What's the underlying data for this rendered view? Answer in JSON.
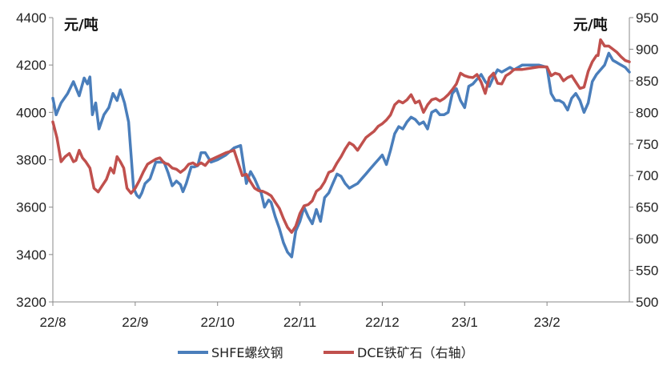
{
  "chart_data": {
    "type": "line",
    "title": "",
    "left_unit": "元/吨",
    "right_unit": "元/吨",
    "x_tick_labels": [
      "22/8",
      "22/9",
      "22/10",
      "22/11",
      "22/12",
      "23/1",
      "23/2"
    ],
    "y_left": {
      "min": 3200,
      "max": 4400,
      "ticks": [
        "3200",
        "3400",
        "3600",
        "3800",
        "4000",
        "4200",
        "4400"
      ]
    },
    "y_right": {
      "min": 500,
      "max": 950,
      "ticks": [
        "500",
        "550",
        "600",
        "650",
        "700",
        "750",
        "800",
        "850",
        "900",
        "950"
      ]
    },
    "grid": false,
    "legend_position": "bottom",
    "x_range": [
      0,
      7
    ],
    "series": [
      {
        "name": "SHFE螺纹钢",
        "axis": "left",
        "color": "#4a7ebb",
        "x": [
          0,
          0.04,
          0.1,
          0.18,
          0.25,
          0.32,
          0.38,
          0.42,
          0.45,
          0.48,
          0.52,
          0.56,
          0.62,
          0.68,
          0.73,
          0.78,
          0.82,
          0.87,
          0.92,
          0.98,
          1.02,
          1.05,
          1.08,
          1.12,
          1.18,
          1.25,
          1.3,
          1.35,
          1.4,
          1.45,
          1.5,
          1.55,
          1.58,
          1.62,
          1.68,
          1.72,
          1.76,
          1.8,
          1.85,
          1.92,
          2.0,
          2.1,
          2.2,
          2.28,
          2.35,
          2.4,
          2.45,
          2.5,
          2.53,
          2.57,
          2.62,
          2.65,
          2.7,
          2.75,
          2.8,
          2.85,
          2.9,
          2.95,
          3.0,
          3.05,
          3.1,
          3.15,
          3.2,
          3.25,
          3.3,
          3.35,
          3.4,
          3.45,
          3.5,
          3.55,
          3.6,
          3.65,
          3.7,
          3.75,
          3.8,
          3.85,
          3.9,
          3.95,
          4.0,
          4.05,
          4.1,
          4.15,
          4.2,
          4.25,
          4.3,
          4.35,
          4.4,
          4.45,
          4.5,
          4.55,
          4.6,
          4.65,
          4.7,
          4.75,
          4.8,
          4.85,
          4.9,
          4.95,
          5.0,
          5.05,
          5.1,
          5.15,
          5.2,
          5.25,
          5.3,
          5.35,
          5.4,
          5.45,
          5.5,
          5.55,
          5.6,
          5.7,
          5.8,
          5.9,
          6.0,
          6.05,
          6.1,
          6.15,
          6.2,
          6.25,
          6.3,
          6.35,
          6.4,
          6.45,
          6.5,
          6.55,
          6.6,
          6.65,
          6.7,
          6.75,
          6.8,
          6.85,
          6.9,
          6.95,
          7.0
        ],
        "y": [
          4060,
          3990,
          4040,
          4080,
          4130,
          4070,
          4145,
          4120,
          4150,
          3990,
          4040,
          3930,
          3990,
          4020,
          4080,
          4050,
          4095,
          4040,
          3960,
          3680,
          3650,
          3640,
          3660,
          3700,
          3720,
          3790,
          3790,
          3790,
          3745,
          3690,
          3710,
          3695,
          3665,
          3700,
          3770,
          3770,
          3775,
          3830,
          3830,
          3790,
          3800,
          3820,
          3850,
          3860,
          3700,
          3750,
          3720,
          3680,
          3660,
          3600,
          3630,
          3620,
          3560,
          3510,
          3450,
          3410,
          3390,
          3500,
          3540,
          3600,
          3560,
          3530,
          3590,
          3540,
          3640,
          3660,
          3700,
          3740,
          3730,
          3700,
          3680,
          3690,
          3700,
          3720,
          3740,
          3760,
          3780,
          3800,
          3820,
          3780,
          3840,
          3910,
          3940,
          3930,
          3960,
          3980,
          3970,
          3950,
          3960,
          3930,
          4000,
          4010,
          3990,
          3990,
          4000,
          4080,
          4100,
          4050,
          4020,
          4110,
          4120,
          4140,
          4160,
          4130,
          4110,
          4150,
          4180,
          4170,
          4180,
          4190,
          4180,
          4200,
          4200,
          4200,
          4190,
          4080,
          4050,
          4050,
          4040,
          4010,
          4060,
          4080,
          4050,
          4000,
          4040,
          4130,
          4160,
          4180,
          4200,
          4250,
          4220,
          4210,
          4200,
          4190,
          4170
        ]
      },
      {
        "name": "DCE铁矿石（右轴）",
        "axis": "right",
        "color": "#c0504d",
        "x": [
          0,
          0.05,
          0.1,
          0.15,
          0.2,
          0.25,
          0.28,
          0.32,
          0.36,
          0.4,
          0.45,
          0.5,
          0.55,
          0.6,
          0.65,
          0.7,
          0.74,
          0.78,
          0.82,
          0.86,
          0.9,
          0.95,
          1.0,
          1.05,
          1.1,
          1.15,
          1.2,
          1.25,
          1.3,
          1.35,
          1.4,
          1.45,
          1.5,
          1.55,
          1.6,
          1.65,
          1.7,
          1.75,
          1.8,
          1.85,
          1.9,
          2.0,
          2.1,
          2.2,
          2.3,
          2.35,
          2.4,
          2.45,
          2.5,
          2.55,
          2.6,
          2.65,
          2.7,
          2.75,
          2.8,
          2.85,
          2.9,
          2.95,
          3.0,
          3.05,
          3.1,
          3.15,
          3.2,
          3.25,
          3.3,
          3.35,
          3.4,
          3.45,
          3.5,
          3.55,
          3.6,
          3.65,
          3.7,
          3.75,
          3.8,
          3.85,
          3.9,
          3.95,
          4.0,
          4.05,
          4.1,
          4.15,
          4.2,
          4.25,
          4.3,
          4.35,
          4.4,
          4.45,
          4.5,
          4.55,
          4.6,
          4.65,
          4.7,
          4.75,
          4.8,
          4.85,
          4.9,
          4.95,
          5.0,
          5.05,
          5.1,
          5.15,
          5.2,
          5.25,
          5.3,
          5.35,
          5.4,
          5.45,
          5.5,
          5.55,
          5.6,
          5.7,
          5.8,
          5.9,
          6.0,
          6.05,
          6.1,
          6.15,
          6.2,
          6.25,
          6.3,
          6.35,
          6.4,
          6.45,
          6.5,
          6.55,
          6.6,
          6.62,
          6.65,
          6.7,
          6.75,
          6.8,
          6.85,
          6.9,
          6.95,
          7.0
        ],
        "y": [
          785,
          760,
          722,
          730,
          735,
          722,
          724,
          740,
          728,
          722,
          712,
          680,
          674,
          684,
          694,
          712,
          704,
          730,
          722,
          712,
          680,
          672,
          680,
          692,
          706,
          718,
          722,
          726,
          728,
          720,
          718,
          712,
          710,
          705,
          710,
          718,
          720,
          716,
          720,
          716,
          724,
          730,
          736,
          740,
          700,
          702,
          690,
          680,
          676,
          675,
          672,
          668,
          658,
          648,
          632,
          618,
          610,
          620,
          640,
          652,
          654,
          660,
          675,
          680,
          690,
          705,
          708,
          720,
          730,
          742,
          752,
          748,
          740,
          750,
          760,
          765,
          770,
          778,
          782,
          788,
          796,
          812,
          818,
          815,
          820,
          828,
          815,
          818,
          800,
          812,
          820,
          822,
          818,
          822,
          828,
          836,
          845,
          862,
          858,
          856,
          855,
          860,
          848,
          830,
          855,
          862,
          846,
          845,
          858,
          862,
          868,
          868,
          870,
          872,
          872,
          858,
          862,
          860,
          850,
          855,
          858,
          848,
          838,
          840,
          865,
          880,
          890,
          890,
          915,
          905,
          905,
          900,
          895,
          888,
          882,
          880
        ]
      }
    ]
  }
}
